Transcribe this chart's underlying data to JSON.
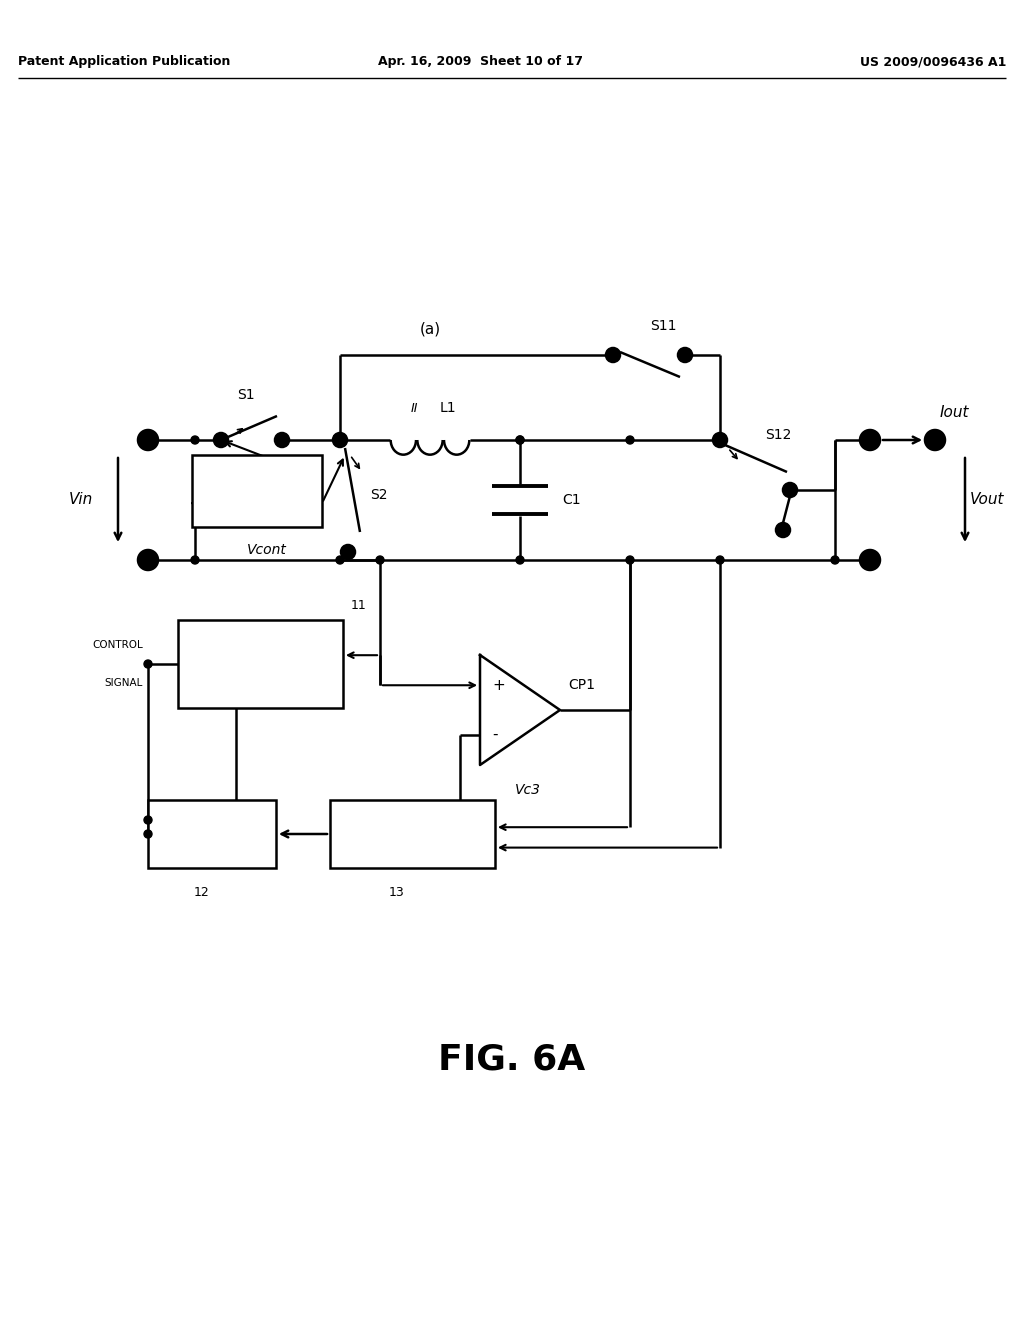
{
  "background_color": "#ffffff",
  "title": "FIG. 6A",
  "header_left": "Patent Application Publication",
  "header_mid": "Apr. 16, 2009  Sheet 10 of 17",
  "header_right": "US 2009/0096436 A1"
}
